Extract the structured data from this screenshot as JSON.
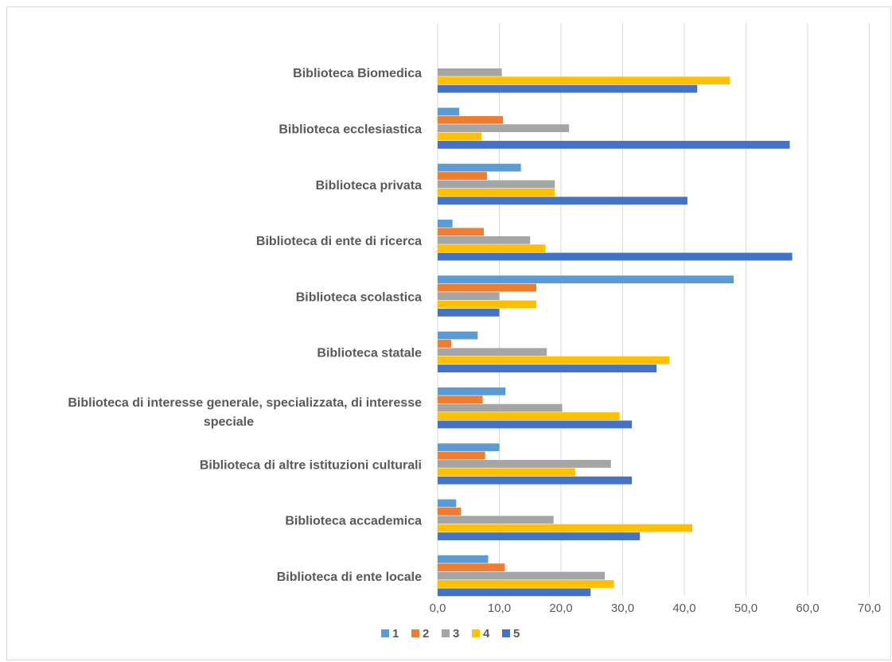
{
  "chart_data": {
    "type": "bar",
    "orientation": "horizontal",
    "categories": [
      "Biblioteca Biomedica",
      "Biblioteca ecclesiastica",
      "Biblioteca privata",
      "Biblioteca di ente di ricerca",
      "Biblioteca scolastica",
      "Biblioteca statale",
      "Biblioteca di interesse generale, specializzata, di interesse speciale",
      "Biblioteca di altre istituzioni culturali",
      "Biblioteca accademica",
      "Biblioteca di ente locale"
    ],
    "series": [
      {
        "name": "1",
        "color": "#5b9bd5",
        "values": [
          0,
          3.5,
          13.5,
          2.4,
          48.0,
          6.5,
          11.0,
          10.0,
          3.0,
          8.2
        ]
      },
      {
        "name": "2",
        "color": "#ed7d31",
        "values": [
          0,
          10.6,
          8.0,
          7.5,
          16.0,
          2.2,
          7.3,
          7.7,
          3.8,
          10.9
        ]
      },
      {
        "name": "3",
        "color": "#a5a5a5",
        "values": [
          10.4,
          21.3,
          19.0,
          15.0,
          10.0,
          17.7,
          20.2,
          28.1,
          18.8,
          27.1
        ]
      },
      {
        "name": "4",
        "color": "#ffc000",
        "values": [
          47.4,
          7.1,
          19.0,
          17.5,
          16.0,
          37.6,
          29.5,
          22.3,
          41.3,
          28.6
        ]
      },
      {
        "name": "5",
        "color": "#4472c4",
        "values": [
          42.1,
          57.1,
          40.5,
          57.5,
          10.0,
          35.5,
          31.5,
          31.5,
          32.8,
          24.8
        ]
      }
    ],
    "xlim": [
      0,
      70
    ],
    "x_ticks": [
      "0,0",
      "10,0",
      "20,0",
      "30,0",
      "40,0",
      "50,0",
      "60,0",
      "70,0"
    ],
    "grid": "vertical",
    "legend": "bottom",
    "title": "",
    "xlabel": "",
    "ylabel": ""
  }
}
